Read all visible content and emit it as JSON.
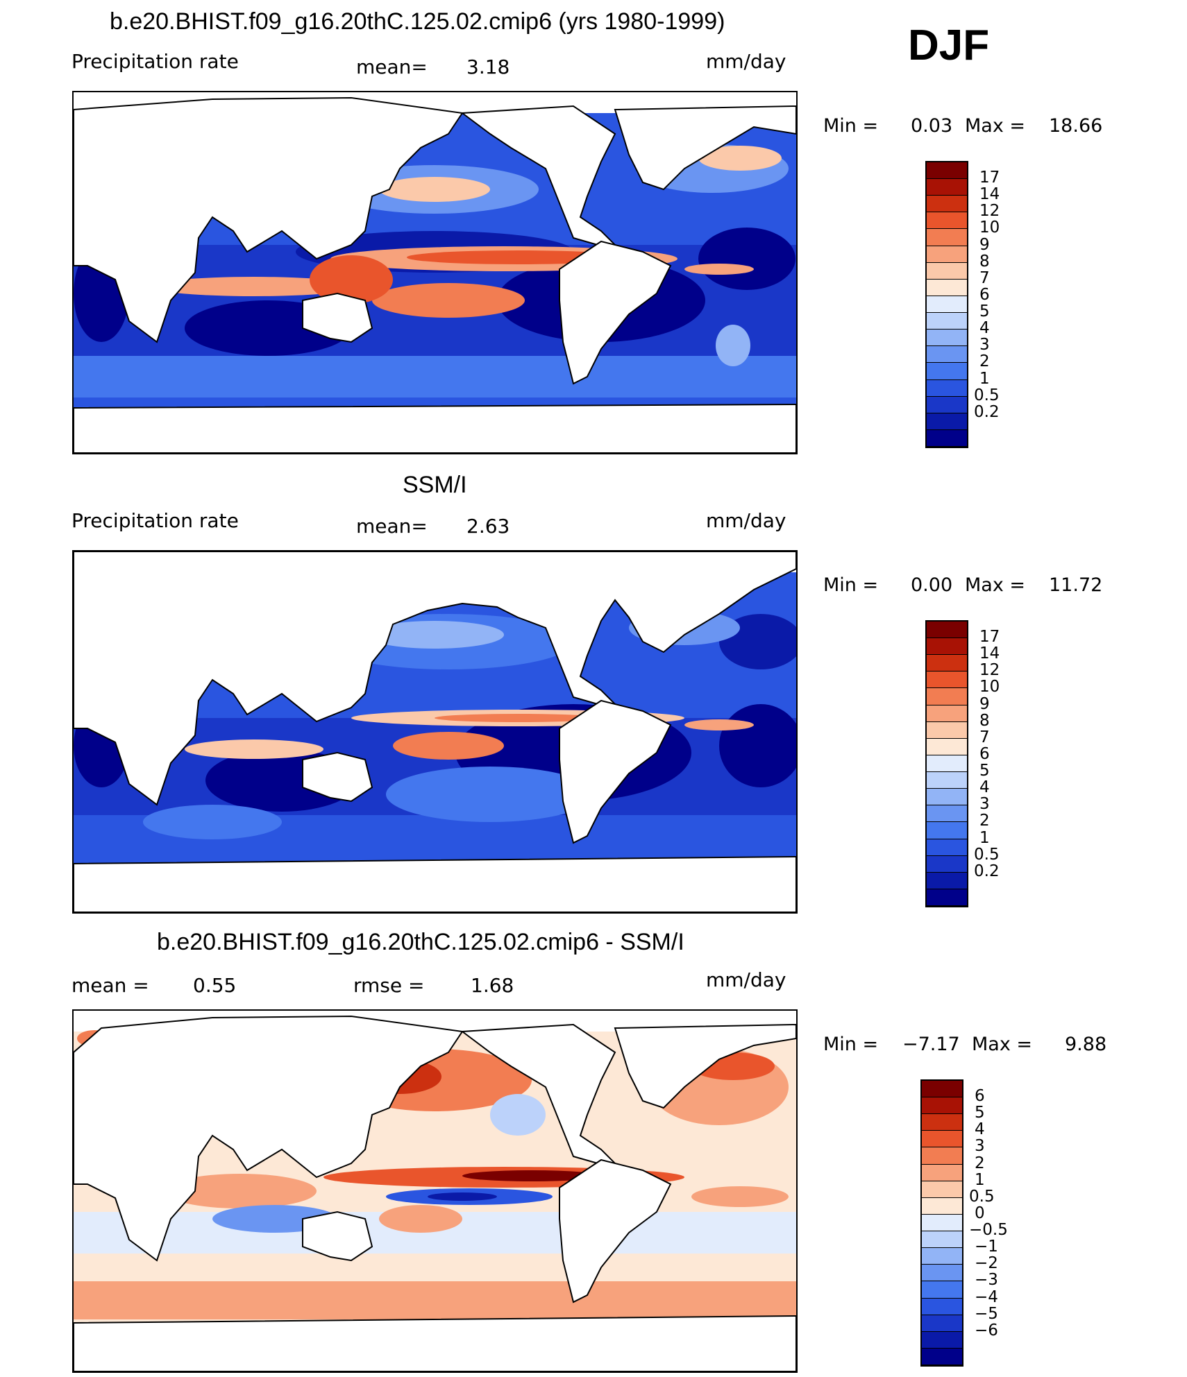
{
  "season": "DJF",
  "panels": [
    {
      "title": "b.e20.BHIST.f09_g16.20thC.125.02.cmip6 (yrs 1980-1999)",
      "left_label": "Precipitation  rate",
      "center_label": "mean=",
      "center_value": "3.18",
      "units": "mm/day",
      "min_label": "Min  =",
      "min_value": "0.03",
      "max_label": "Max  =",
      "max_value": "18.66",
      "colorbar_labels": [
        "17",
        "14",
        "12",
        "10",
        "9",
        "8",
        "7",
        "6",
        "5",
        "4",
        "3",
        "2",
        "1",
        "0.5",
        "0.2"
      ]
    },
    {
      "title": "SSM/I",
      "left_label": "Precipitation  rate",
      "center_label": "mean=",
      "center_value": "2.63",
      "units": "mm/day",
      "min_label": "Min  =",
      "min_value": "0.00",
      "max_label": "Max  =",
      "max_value": "11.72",
      "colorbar_labels": [
        "17",
        "14",
        "12",
        "10",
        "9",
        "8",
        "7",
        "6",
        "5",
        "4",
        "3",
        "2",
        "1",
        "0.5",
        "0.2"
      ]
    },
    {
      "title": "b.e20.BHIST.f09_g16.20thC.125.02.cmip6 - SSM/I",
      "left_label": "mean  =",
      "left_value": "0.55",
      "center_label": "rmse  =",
      "center_value": "1.68",
      "units": "mm/day",
      "min_label": "Min  =",
      "min_value": "−7.17",
      "max_label": "Max  =",
      "max_value": "9.88",
      "colorbar_labels": [
        "6",
        "5",
        "4",
        "3",
        "2",
        "1",
        "0.5",
        "0",
        "−0.5",
        "−1",
        "−2",
        "−3",
        "−4",
        "−5",
        "−6"
      ]
    }
  ],
  "palettes": {
    "precip": [
      "#00008a",
      "#0a1aa8",
      "#1a37c8",
      "#2a55e0",
      "#4477ee",
      "#6a95f2",
      "#92b4f6",
      "#bcd2fa",
      "#e2ecfc",
      "#fde8d6",
      "#fbc9aa",
      "#f7a27c",
      "#f27d52",
      "#e9552c",
      "#cc3010",
      "#a81205",
      "#7a0000"
    ],
    "diff": [
      "#00008a",
      "#0a1aa8",
      "#1a37c8",
      "#2a55e0",
      "#4477ee",
      "#6a95f2",
      "#92b4f6",
      "#bcd2fa",
      "#e2ecfc",
      "#fde8d6",
      "#fbc9aa",
      "#f7a27c",
      "#f27d52",
      "#e9552c",
      "#cc3010",
      "#a81205",
      "#7a0000"
    ]
  }
}
